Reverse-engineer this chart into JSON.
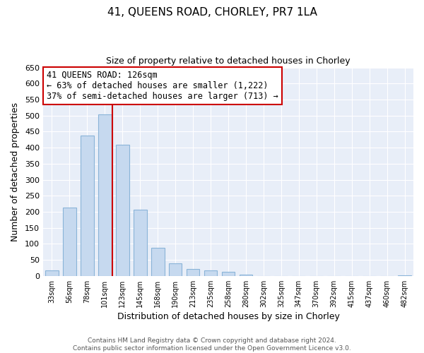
{
  "title": "41, QUEENS ROAD, CHORLEY, PR7 1LA",
  "subtitle": "Size of property relative to detached houses in Chorley",
  "xlabel": "Distribution of detached houses by size in Chorley",
  "ylabel": "Number of detached properties",
  "bar_labels": [
    "33sqm",
    "56sqm",
    "78sqm",
    "101sqm",
    "123sqm",
    "145sqm",
    "168sqm",
    "190sqm",
    "213sqm",
    "235sqm",
    "258sqm",
    "280sqm",
    "302sqm",
    "325sqm",
    "347sqm",
    "370sqm",
    "392sqm",
    "415sqm",
    "437sqm",
    "460sqm",
    "482sqm"
  ],
  "bar_values": [
    18,
    213,
    438,
    503,
    410,
    207,
    87,
    40,
    22,
    18,
    12,
    5,
    0,
    0,
    0,
    0,
    0,
    0,
    0,
    0,
    2
  ],
  "bar_color": "#c6d9ef",
  "bar_edge_color": "#8ab4d8",
  "vline_color": "#cc0000",
  "annotation_title": "41 QUEENS ROAD: 126sqm",
  "annotation_line1": "← 63% of detached houses are smaller (1,222)",
  "annotation_line2": "37% of semi-detached houses are larger (713) →",
  "annotation_box_color": "#ffffff",
  "annotation_box_edge": "#cc0000",
  "ylim": [
    0,
    650
  ],
  "yticks": [
    0,
    50,
    100,
    150,
    200,
    250,
    300,
    350,
    400,
    450,
    500,
    550,
    600,
    650
  ],
  "footer1": "Contains HM Land Registry data © Crown copyright and database right 2024.",
  "footer2": "Contains public sector information licensed under the Open Government Licence v3.0.",
  "bg_color": "#ffffff",
  "plot_bg_color": "#e8eef8",
  "grid_color": "#ffffff"
}
